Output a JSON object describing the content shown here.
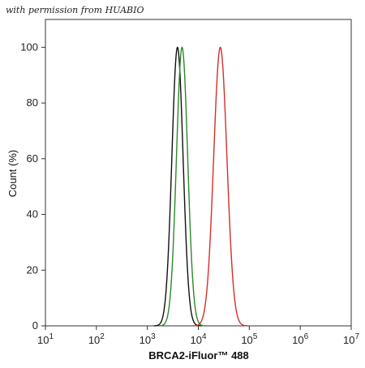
{
  "watermark": "with permission from HUABIO",
  "chart_data": {
    "type": "line",
    "xlabel": "BRCA2-iFluor™ 488",
    "ylabel": "Count  (%)",
    "xscale": "log",
    "xlim": [
      10,
      10000000
    ],
    "ylim": [
      0,
      110
    ],
    "x_ticks": [
      1,
      2,
      3,
      4,
      5,
      6,
      7
    ],
    "y_ticks": [
      0,
      20,
      40,
      60,
      80,
      100
    ],
    "y_tick_labels": [
      "0",
      "20",
      "40",
      "60",
      "80",
      "100"
    ],
    "legend": "none",
    "grid": false,
    "series": [
      {
        "color": "#111111",
        "peak_x": 3900,
        "peak_y": 100,
        "sigma_decades": 0.11
      },
      {
        "color": "#2a8a2a",
        "peak_x": 4800,
        "peak_y": 100,
        "sigma_decades": 0.11
      },
      {
        "color": "#d0302a",
        "peak_x": 27000,
        "peak_y": 100,
        "sigma_decades": 0.13
      }
    ]
  }
}
